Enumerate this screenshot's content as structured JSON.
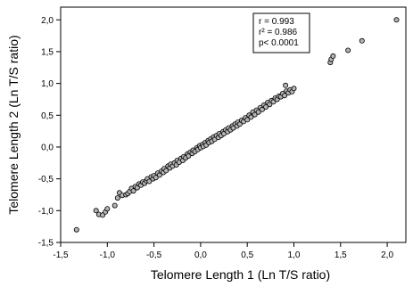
{
  "chart_data": {
    "type": "scatter",
    "title": "",
    "xlabel": "Telomere Length 1 (Ln T/S ratio)",
    "ylabel": "Telomere Length 2 (Ln T/S ratio)",
    "xlim": [
      -1.5,
      2.2
    ],
    "ylim": [
      -1.5,
      2.2
    ],
    "xticks": [
      -1.5,
      -1.0,
      -0.5,
      0.0,
      0.5,
      1.0,
      1.5,
      2.0
    ],
    "yticks": [
      -1.5,
      -1.0,
      -0.5,
      0.0,
      0.5,
      1.0,
      1.5,
      2.0
    ],
    "xtick_labels": [
      "-1,5",
      "-1,0",
      "-0,5",
      "0,0",
      "0,5",
      "1,0",
      "1,5",
      "2,0"
    ],
    "ytick_labels": [
      "-1,5",
      "-1,0",
      "-0,5",
      "0,0",
      "0,5",
      "1,0",
      "1,5",
      "2,0"
    ],
    "grid": false,
    "marker_color": "#b3b3b3",
    "marker_edge": "#000000",
    "annotation": {
      "lines": [
        "r  = 0.993",
        "r² = 0.986",
        "p< 0.0001"
      ],
      "position": "top-right"
    },
    "series": [
      {
        "points": [
          [
            -1.33,
            -1.3
          ],
          [
            -1.12,
            -1.0
          ],
          [
            -1.09,
            -1.06
          ],
          [
            -1.05,
            -1.07
          ],
          [
            -1.02,
            -1.02
          ],
          [
            -1.0,
            -0.97
          ],
          [
            -0.92,
            -0.92
          ],
          [
            -0.89,
            -0.8
          ],
          [
            -0.87,
            -0.72
          ],
          [
            -0.84,
            -0.76
          ],
          [
            -0.8,
            -0.75
          ],
          [
            -0.78,
            -0.73
          ],
          [
            -0.76,
            -0.7
          ],
          [
            -0.74,
            -0.65
          ],
          [
            -0.72,
            -0.69
          ],
          [
            -0.7,
            -0.62
          ],
          [
            -0.68,
            -0.64
          ],
          [
            -0.66,
            -0.58
          ],
          [
            -0.64,
            -0.6
          ],
          [
            -0.62,
            -0.55
          ],
          [
            -0.6,
            -0.57
          ],
          [
            -0.58,
            -0.53
          ],
          [
            -0.57,
            -0.5
          ],
          [
            -0.55,
            -0.54
          ],
          [
            -0.53,
            -0.47
          ],
          [
            -0.51,
            -0.5
          ],
          [
            -0.5,
            -0.45
          ],
          [
            -0.48,
            -0.48
          ],
          [
            -0.46,
            -0.41
          ],
          [
            -0.44,
            -0.44
          ],
          [
            -0.42,
            -0.38
          ],
          [
            -0.4,
            -0.4
          ],
          [
            -0.39,
            -0.34
          ],
          [
            -0.37,
            -0.37
          ],
          [
            -0.35,
            -0.3
          ],
          [
            -0.33,
            -0.33
          ],
          [
            -0.32,
            -0.27
          ],
          [
            -0.3,
            -0.3
          ],
          [
            -0.28,
            -0.25
          ],
          [
            -0.26,
            -0.28
          ],
          [
            -0.25,
            -0.21
          ],
          [
            -0.23,
            -0.24
          ],
          [
            -0.21,
            -0.18
          ],
          [
            -0.19,
            -0.21
          ],
          [
            -0.18,
            -0.15
          ],
          [
            -0.16,
            -0.17
          ],
          [
            -0.14,
            -0.11
          ],
          [
            -0.13,
            -0.14
          ],
          [
            -0.11,
            -0.08
          ],
          [
            -0.09,
            -0.1
          ],
          [
            -0.08,
            -0.05
          ],
          [
            -0.06,
            -0.07
          ],
          [
            -0.04,
            -0.01
          ],
          [
            -0.03,
            -0.04
          ],
          [
            -0.01,
            0.02
          ],
          [
            0.0,
            -0.01
          ],
          [
            0.02,
            0.04
          ],
          [
            0.03,
            0.01
          ],
          [
            0.05,
            0.07
          ],
          [
            0.06,
            0.03
          ],
          [
            0.08,
            0.1
          ],
          [
            0.09,
            0.07
          ],
          [
            0.11,
            0.13
          ],
          [
            0.12,
            0.09
          ],
          [
            0.14,
            0.16
          ],
          [
            0.15,
            0.12
          ],
          [
            0.17,
            0.18
          ],
          [
            0.19,
            0.15
          ],
          [
            0.2,
            0.21
          ],
          [
            0.22,
            0.18
          ],
          [
            0.24,
            0.24
          ],
          [
            0.25,
            0.21
          ],
          [
            0.27,
            0.27
          ],
          [
            0.29,
            0.24
          ],
          [
            0.3,
            0.3
          ],
          [
            0.32,
            0.27
          ],
          [
            0.34,
            0.33
          ],
          [
            0.35,
            0.3
          ],
          [
            0.37,
            0.36
          ],
          [
            0.39,
            0.33
          ],
          [
            0.4,
            0.39
          ],
          [
            0.42,
            0.36
          ],
          [
            0.44,
            0.42
          ],
          [
            0.46,
            0.4
          ],
          [
            0.48,
            0.46
          ],
          [
            0.5,
            0.43
          ],
          [
            0.52,
            0.5
          ],
          [
            0.54,
            0.47
          ],
          [
            0.56,
            0.55
          ],
          [
            0.58,
            0.51
          ],
          [
            0.6,
            0.58
          ],
          [
            0.62,
            0.55
          ],
          [
            0.64,
            0.62
          ],
          [
            0.66,
            0.59
          ],
          [
            0.68,
            0.66
          ],
          [
            0.7,
            0.63
          ],
          [
            0.72,
            0.7
          ],
          [
            0.74,
            0.67
          ],
          [
            0.76,
            0.73
          ],
          [
            0.78,
            0.71
          ],
          [
            0.8,
            0.77
          ],
          [
            0.82,
            0.75
          ],
          [
            0.84,
            0.8
          ],
          [
            0.86,
            0.79
          ],
          [
            0.88,
            0.84
          ],
          [
            0.9,
            0.81
          ],
          [
            0.92,
            0.88
          ],
          [
            0.94,
            0.85
          ],
          [
            0.96,
            0.9
          ],
          [
            0.98,
            0.87
          ],
          [
            1.0,
            0.92
          ],
          [
            0.91,
            0.97
          ],
          [
            1.39,
            1.33
          ],
          [
            1.4,
            1.38
          ],
          [
            1.42,
            1.43
          ],
          [
            1.58,
            1.52
          ],
          [
            1.73,
            1.67
          ],
          [
            2.1,
            2.0
          ]
        ]
      }
    ]
  }
}
